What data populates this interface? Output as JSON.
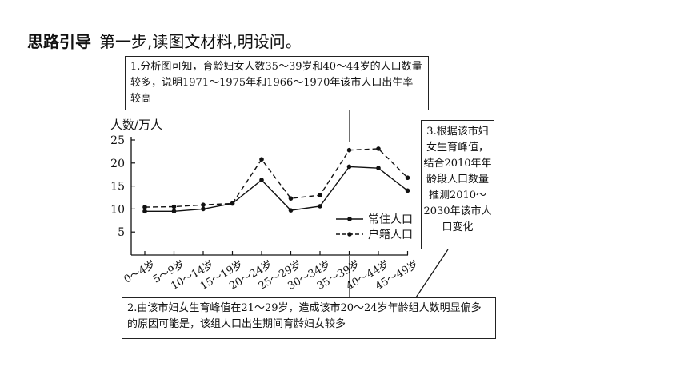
{
  "header": {
    "title": "思路引导",
    "subtitle": "第一步,读图文材料,明设问。"
  },
  "notes": {
    "note1": "1.分析图可知，育龄妇女人数35～39岁和40～44岁的人口数量较多，说明1971～1975年和1966～1970年该市人口出生率较高",
    "note2": "2.由该市妇女生育峰值在21～29岁，造成该市20～24岁年龄组人数明显偏多的原因可能是，该组人口出生期间育龄妇女较多",
    "note3": "3.根据该市妇女生育峰值，结合2010年年龄段人口数量推测2010～2030年该市人口变化"
  },
  "chart_data": {
    "type": "line",
    "ylabel": "人数/万人",
    "ylim": [
      0,
      25
    ],
    "yticks": [
      5,
      10,
      15,
      20,
      25
    ],
    "categories": [
      "0～4岁",
      "5～9岁",
      "10～14岁",
      "15～19岁",
      "20～24岁",
      "25～29岁",
      "30～34岁",
      "35～39岁",
      "40～44岁",
      "45～49岁"
    ],
    "series": [
      {
        "name": "常住人口",
        "style": "solid",
        "values": [
          9.5,
          9.5,
          10.0,
          11.2,
          16.3,
          9.7,
          10.6,
          19.2,
          18.9,
          14.0
        ]
      },
      {
        "name": "户籍人口",
        "style": "dashed",
        "values": [
          10.4,
          10.5,
          10.9,
          11.2,
          20.8,
          12.3,
          13.0,
          22.8,
          23.1,
          16.8
        ]
      }
    ],
    "grid": false,
    "legend_position": "right"
  }
}
